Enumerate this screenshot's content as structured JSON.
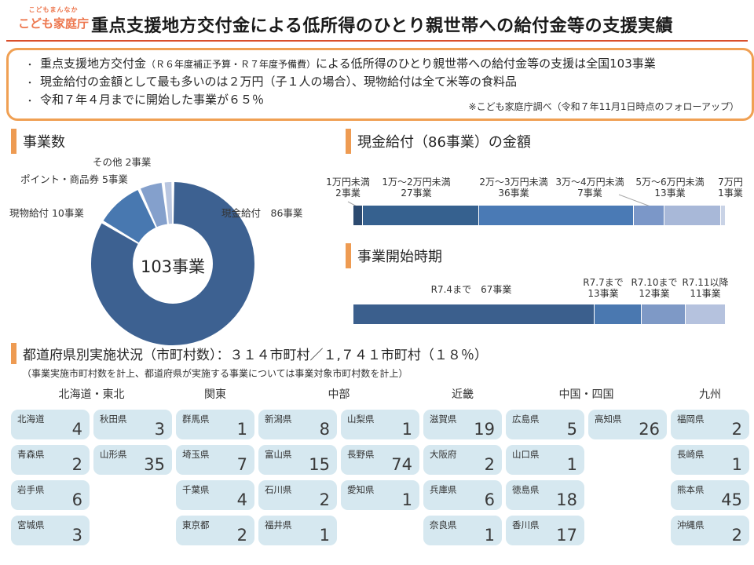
{
  "header": {
    "logo_top": "こどもまんなか",
    "logo_main": "こども家庭庁",
    "title": "重点支援地方交付金による低所得のひとり親世帯への給付金等の支援実績"
  },
  "summary": {
    "bullet_char": "・",
    "bullet1_pre": "重点支援地方交付金",
    "bullet1_small": "（Ｒ６年度補正予算・Ｒ７年度予備費）",
    "bullet1_post": "による低所得のひとり親世帯への給付金等の支援は全国103事業",
    "bullet2": "現金給付の金額として最も多いのは２万円（子１人の場合）、現物給付は全て米等の食料品",
    "bullet3": "令和７年４月までに開始した事業が６５％",
    "note": "※こども家庭庁調べ（令和７年11月1日時点のフォローアップ）"
  },
  "colors": {
    "accent_orange": "#EE9B52",
    "box_border_orange": "#F0A053",
    "title_rule_red": "#D94F2B",
    "logo_orange": "#ED764D",
    "card_blue": "#D6E8F0"
  },
  "chart_data": [
    {
      "type": "pie",
      "variant": "donut",
      "title": "事業数",
      "total": 103,
      "center_label": "103事業",
      "legend_position": "around",
      "slices": [
        {
          "name": "現金給付",
          "value": 86,
          "label": "現金給付　86事業",
          "color": "#3D6191"
        },
        {
          "name": "現物給付",
          "value": 10,
          "label": "現物給付 10事業",
          "color": "#4878B0"
        },
        {
          "name": "ポイント・商品券",
          "value": 5,
          "label": "ポイント・商品券 5事業",
          "color": "#84A0CC"
        },
        {
          "name": "その他",
          "value": 2,
          "label": "その他 2事業",
          "color": "#B9C6E0"
        }
      ]
    },
    {
      "type": "bar",
      "variant": "stacked-horizontal",
      "title": "現金給付（86事業）の金額",
      "total": 86,
      "segments": [
        {
          "name": "1万円未満",
          "value": 2,
          "label_line1": "1万円未満",
          "label_line2": "2事業",
          "color": "#2C4A70"
        },
        {
          "name": "1万～2万円未満",
          "value": 27,
          "label_line1": "1万～2万円未満",
          "label_line2": "27事業",
          "color": "#36618F"
        },
        {
          "name": "2万～3万円未満",
          "value": 36,
          "label_line1": "2万～3万円未満",
          "label_line2": "36事業",
          "color": "#4A7AB5"
        },
        {
          "name": "3万～4万円未満",
          "value": 7,
          "label_line1": "3万～4万円未満",
          "label_line2": "7事業",
          "color": "#7B97C8"
        },
        {
          "name": "5万～6万円未満",
          "value": 13,
          "label_line1": "5万～6万円未満",
          "label_line2": "13事業",
          "color": "#A8B8D8"
        },
        {
          "name": "7万円",
          "value": 1,
          "label_line1": "7万円",
          "label_line2": "1事業",
          "color": "#C9D3E6"
        }
      ]
    },
    {
      "type": "bar",
      "variant": "stacked-horizontal",
      "title": "事業開始時期",
      "total": 103,
      "segments": [
        {
          "name": "R7.4まで",
          "value": 67,
          "label_line1": "R7.4まで　67事業",
          "label_line2": "",
          "color": "#3B5F8D"
        },
        {
          "name": "R7.7まで",
          "value": 13,
          "label_line1": "R7.7まで",
          "label_line2": "13事業",
          "color": "#4A78B0"
        },
        {
          "name": "R7.10まで",
          "value": 12,
          "label_line1": "R7.10まで",
          "label_line2": "12事業",
          "color": "#7E99C6"
        },
        {
          "name": "R7.11以降",
          "value": 11,
          "label_line1": "R7.11以降",
          "label_line2": "11事業",
          "color": "#B5C2DE"
        }
      ]
    }
  ],
  "prefectures": {
    "title": "都道府県別実施状況（市町村数）：３１４市町村／１,７４１市町村（１８％）",
    "subtitle": "（事業実施市町村数を計上、都道府県が実施する事業については事業対象市町村数を計上）",
    "regions": [
      {
        "name": "北海道・東北",
        "columns": [
          [
            {
              "name": "北海道",
              "value": 4
            },
            {
              "name": "青森県",
              "value": 2
            },
            {
              "name": "岩手県",
              "value": 6
            },
            {
              "name": "宮城県",
              "value": 3
            }
          ],
          [
            {
              "name": "秋田県",
              "value": 3
            },
            {
              "name": "山形県",
              "value": 35
            }
          ]
        ]
      },
      {
        "name": "関東",
        "columns": [
          [
            {
              "name": "群馬県",
              "value": 1
            },
            {
              "name": "埼玉県",
              "value": 7
            },
            {
              "name": "千葉県",
              "value": 4
            },
            {
              "name": "東京都",
              "value": 2
            }
          ]
        ]
      },
      {
        "name": "中部",
        "columns": [
          [
            {
              "name": "新潟県",
              "value": 8
            },
            {
              "name": "富山県",
              "value": 15
            },
            {
              "name": "石川県",
              "value": 2
            },
            {
              "name": "福井県",
              "value": 1
            }
          ],
          [
            {
              "name": "山梨県",
              "value": 1
            },
            {
              "name": "長野県",
              "value": 74
            },
            {
              "name": "愛知県",
              "value": 1
            }
          ]
        ]
      },
      {
        "name": "近畿",
        "columns": [
          [
            {
              "name": "滋賀県",
              "value": 19
            },
            {
              "name": "大阪府",
              "value": 2
            },
            {
              "name": "兵庫県",
              "value": 6
            },
            {
              "name": "奈良県",
              "value": 1
            }
          ]
        ]
      },
      {
        "name": "中国・四国",
        "columns": [
          [
            {
              "name": "広島県",
              "value": 5
            },
            {
              "name": "山口県",
              "value": 1
            },
            {
              "name": "徳島県",
              "value": 18
            },
            {
              "name": "香川県",
              "value": 17
            }
          ],
          [
            {
              "name": "高知県",
              "value": 26
            }
          ]
        ]
      },
      {
        "name": "九州",
        "columns": [
          [
            {
              "name": "福岡県",
              "value": 2
            },
            {
              "name": "長崎県",
              "value": 1
            },
            {
              "name": "熊本県",
              "value": 45
            },
            {
              "name": "沖縄県",
              "value": 2
            }
          ]
        ]
      }
    ]
  }
}
